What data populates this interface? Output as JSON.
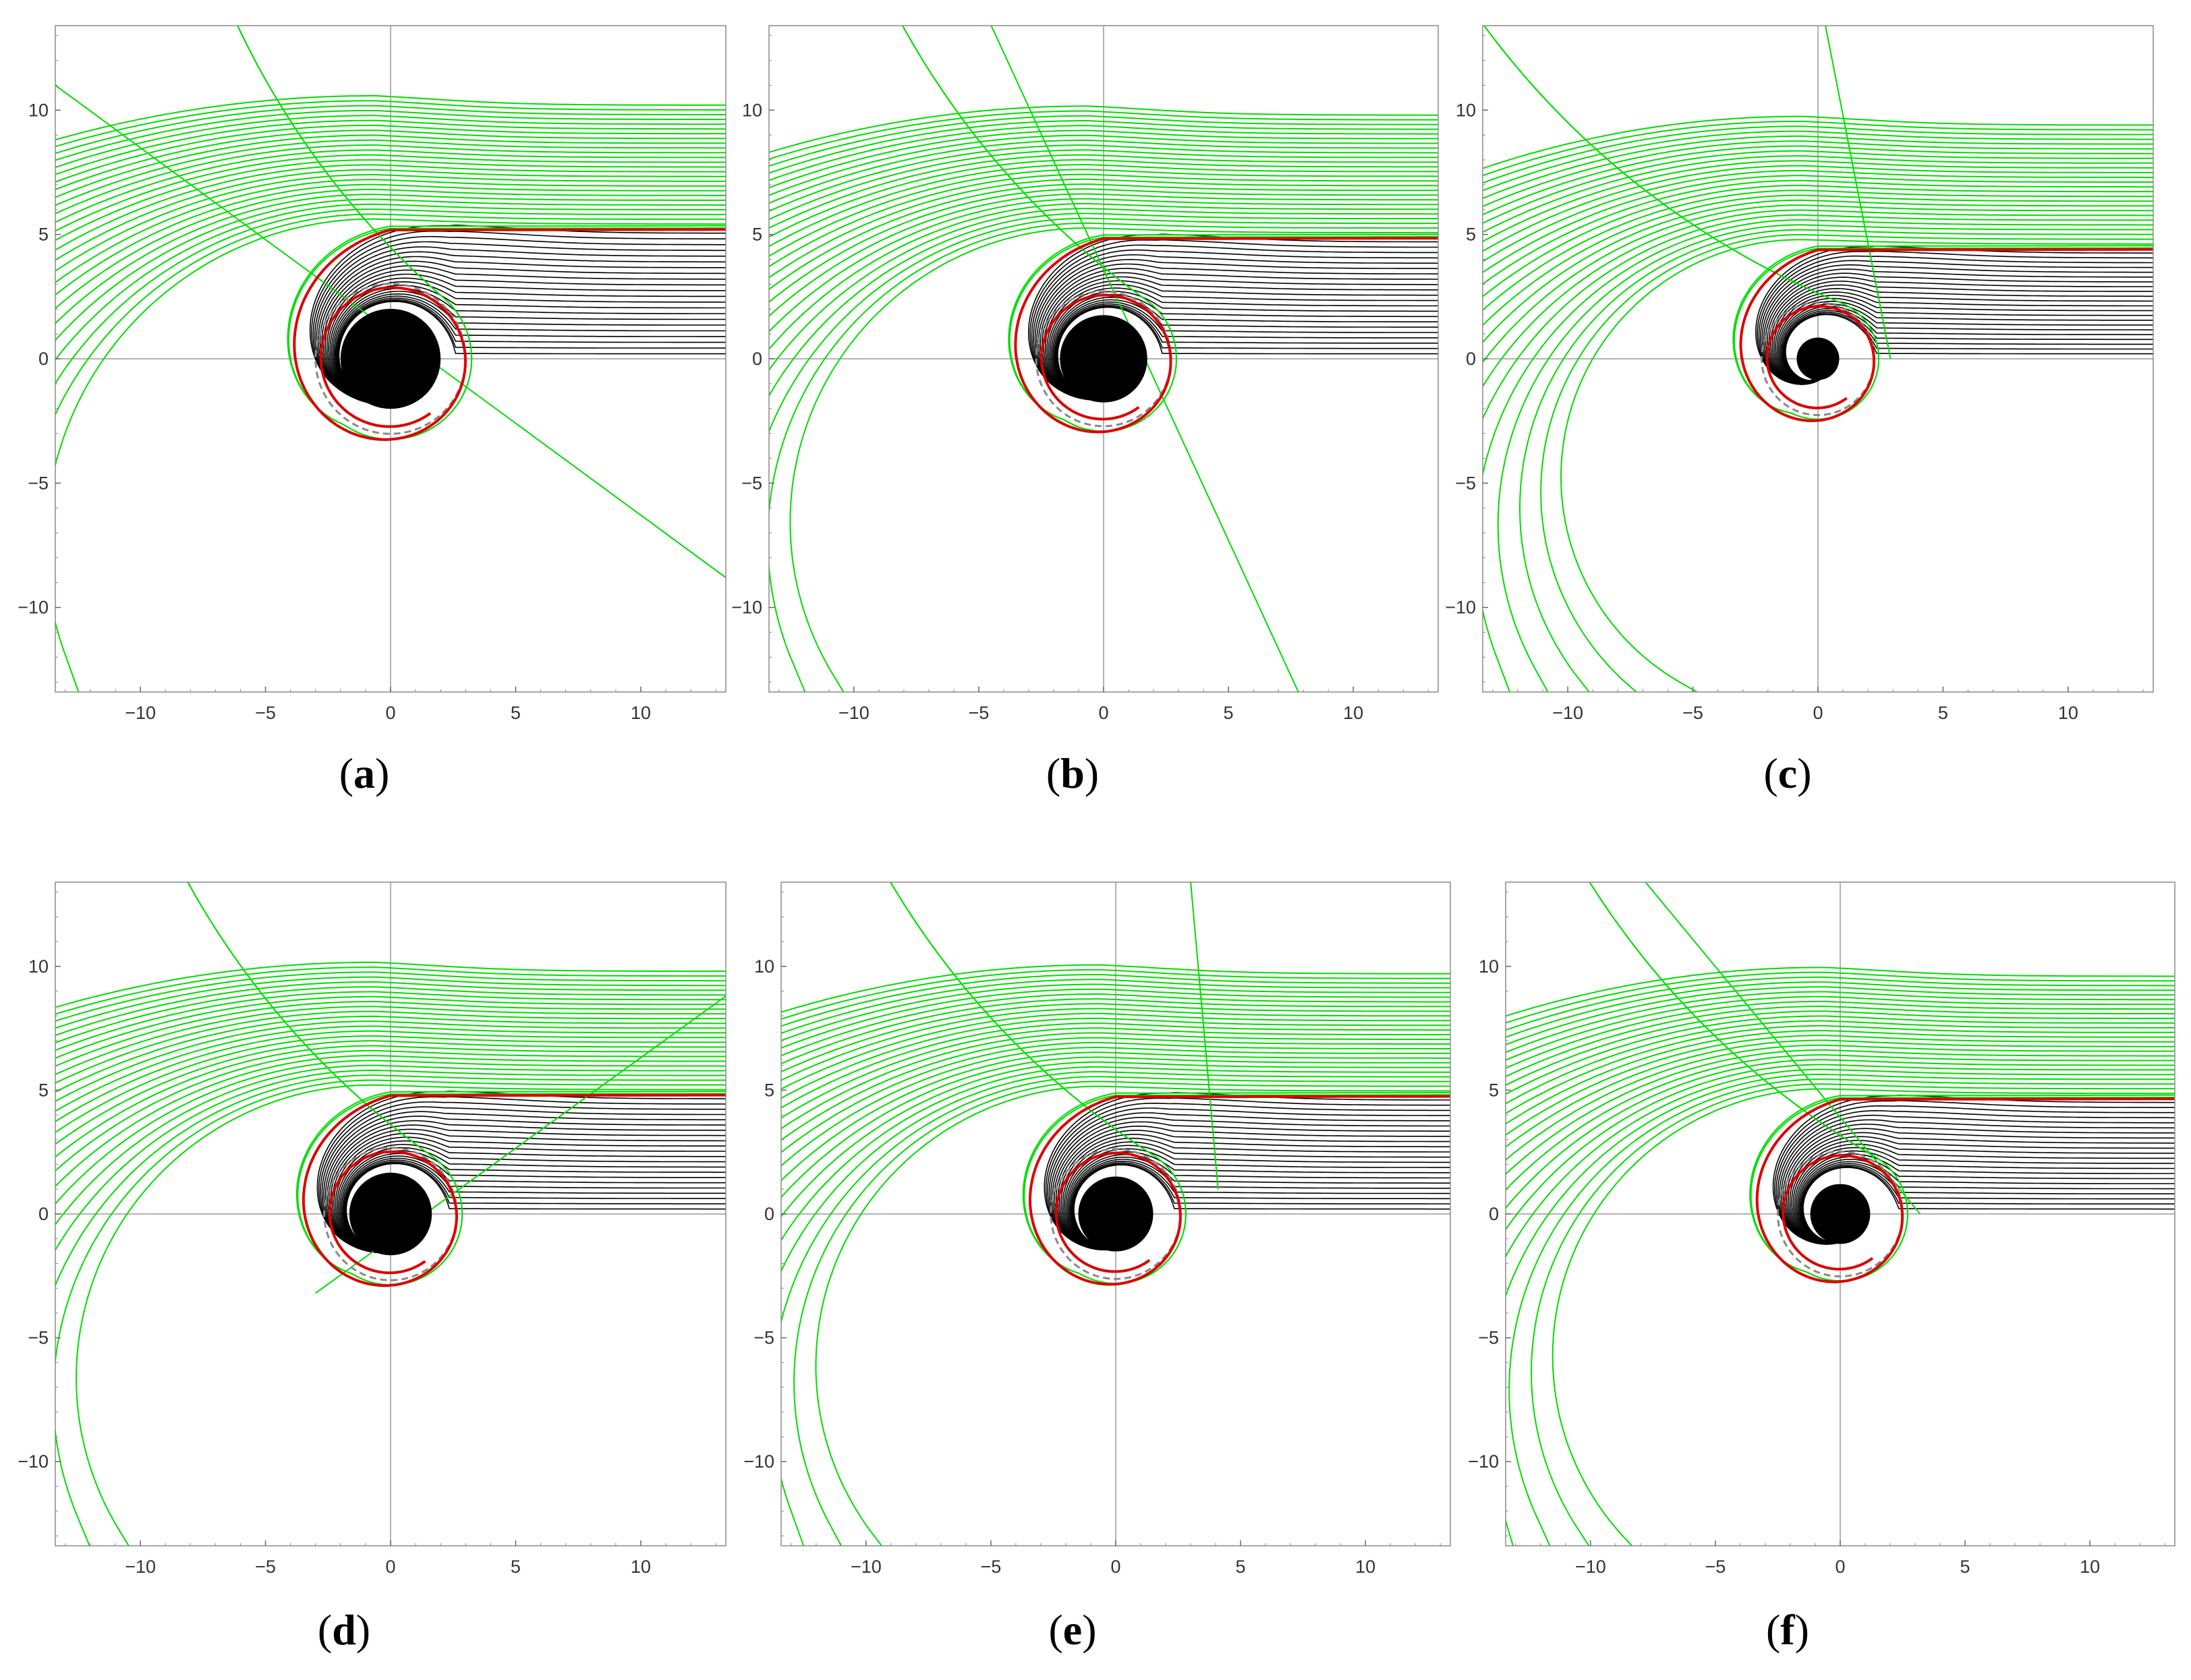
{
  "chart_data": [
    {
      "panel_label": "(a)",
      "letter": "a",
      "type": "line",
      "xlim": [
        -13.4,
        13.4
      ],
      "ylim": [
        -13.4,
        13.4
      ],
      "xticks": [
        -10,
        -5,
        0,
        5,
        10
      ],
      "yticks": [
        -10,
        -5,
        0,
        5,
        10
      ],
      "tick_labels": [
        "−10",
        "−5",
        "0",
        "5",
        "10"
      ],
      "horizon_radius": 2.0,
      "photon_orbit_radius": 3.0,
      "critical_impact": 5.2,
      "spiral_tightness": 0.9,
      "green_upper_max": 10.2,
      "straight_ray": {
        "x1": -13.4,
        "y1": 11.0,
        "x2": 13.4,
        "y2": -8.8
      },
      "colors": {
        "captured": "#000000",
        "scattered": "#00dd00",
        "critical": "#dd0000",
        "photon_sphere": "#888888"
      },
      "grid": false
    },
    {
      "panel_label": "(b)",
      "letter": "b",
      "type": "line",
      "xlim": [
        -13.4,
        13.4
      ],
      "ylim": [
        -13.4,
        13.4
      ],
      "xticks": [
        -10,
        -5,
        0,
        5,
        10
      ],
      "yticks": [
        -10,
        -5,
        0,
        5,
        10
      ],
      "tick_labels": [
        "−10",
        "−5",
        "0",
        "5",
        "10"
      ],
      "horizon_radius": 1.75,
      "photon_orbit_radius": 2.7,
      "critical_impact": 4.85,
      "spiral_tightness": 1.0,
      "green_upper_max": 9.8,
      "straight_ray": {
        "x1": -4.5,
        "y1": 13.4,
        "x2": 7.8,
        "y2": -13.4
      },
      "colors": {
        "captured": "#000000",
        "scattered": "#00dd00",
        "critical": "#dd0000",
        "photon_sphere": "#888888"
      },
      "grid": false
    },
    {
      "panel_label": "(c)",
      "letter": "c",
      "type": "line",
      "xlim": [
        -13.4,
        13.4
      ],
      "ylim": [
        -13.4,
        13.4
      ],
      "xticks": [
        -10,
        -5,
        0,
        5,
        10
      ],
      "yticks": [
        -10,
        -5,
        0,
        5,
        10
      ],
      "tick_labels": [
        "−10",
        "−5",
        "0",
        "5",
        "10"
      ],
      "horizon_radius": 0.85,
      "photon_orbit_radius": 2.25,
      "critical_impact": 4.4,
      "spiral_tightness": 1.25,
      "green_upper_max": 9.4,
      "straight_ray": {
        "x1": 0.3,
        "y1": 13.4,
        "x2": 2.9,
        "y2": 0.0
      },
      "colors": {
        "captured": "#000000",
        "scattered": "#00dd00",
        "critical": "#dd0000",
        "photon_sphere": "#888888"
      },
      "grid": false
    },
    {
      "panel_label": "(d)",
      "letter": "d",
      "type": "line",
      "xlim": [
        -13.4,
        13.4
      ],
      "ylim": [
        -13.4,
        13.4
      ],
      "xticks": [
        -10,
        -5,
        0,
        5,
        10
      ],
      "yticks": [
        -10,
        -5,
        0,
        5,
        10
      ],
      "tick_labels": [
        "−10",
        "−5",
        "0",
        "5",
        "10"
      ],
      "horizon_radius": 1.65,
      "photon_orbit_radius": 2.65,
      "critical_impact": 4.8,
      "spiral_tightness": 1.0,
      "green_upper_max": 9.8,
      "straight_ray": {
        "x1": -3.0,
        "y1": -3.2,
        "x2": 13.4,
        "y2": 8.8
      },
      "colors": {
        "captured": "#000000",
        "scattered": "#00dd00",
        "critical": "#dd0000",
        "photon_sphere": "#888888"
      },
      "grid": false
    },
    {
      "panel_label": "(e)",
      "letter": "e",
      "type": "line",
      "xlim": [
        -13.4,
        13.4
      ],
      "ylim": [
        -13.4,
        13.4
      ],
      "xticks": [
        -10,
        -5,
        0,
        5,
        10
      ],
      "yticks": [
        -10,
        -5,
        0,
        5,
        10
      ],
      "tick_labels": [
        "−10",
        "−5",
        "0",
        "5",
        "10"
      ],
      "horizon_radius": 1.5,
      "photon_orbit_radius": 2.6,
      "critical_impact": 4.75,
      "spiral_tightness": 1.05,
      "green_upper_max": 9.7,
      "straight_ray": {
        "x1": 3.0,
        "y1": 13.4,
        "x2": 4.1,
        "y2": 1.0
      },
      "colors": {
        "captured": "#000000",
        "scattered": "#00dd00",
        "critical": "#dd0000",
        "photon_sphere": "#888888"
      },
      "grid": false
    },
    {
      "panel_label": "(f)",
      "letter": "f",
      "type": "line",
      "xlim": [
        -13.4,
        13.4
      ],
      "ylim": [
        -13.4,
        13.4
      ],
      "xticks": [
        -10,
        -5,
        0,
        5,
        10
      ],
      "yticks": [
        -10,
        -5,
        0,
        5,
        10
      ],
      "tick_labels": [
        "−10",
        "−5",
        "0",
        "5",
        "10"
      ],
      "horizon_radius": 1.2,
      "photon_orbit_radius": 2.5,
      "critical_impact": 4.65,
      "spiral_tightness": 1.1,
      "green_upper_max": 9.6,
      "straight_ray": {
        "x1": -7.8,
        "y1": 13.4,
        "x2": 3.2,
        "y2": 0.0
      },
      "colors": {
        "captured": "#000000",
        "scattered": "#00dd00",
        "critical": "#dd0000",
        "photon_sphere": "#888888"
      },
      "grid": false
    }
  ]
}
